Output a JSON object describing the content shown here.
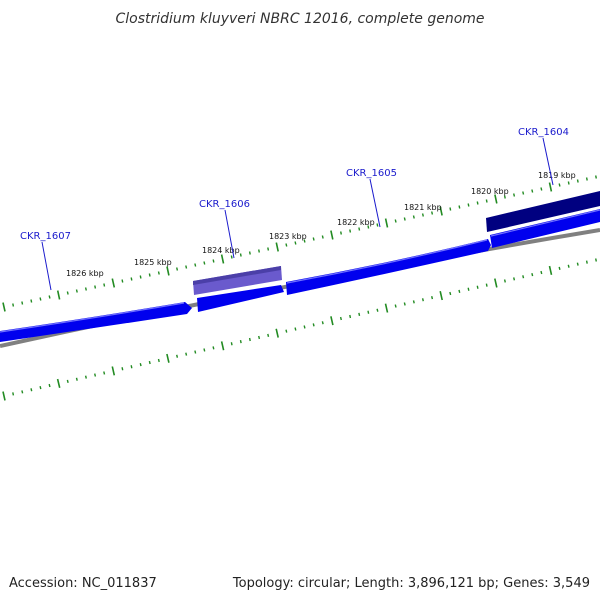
{
  "title": "Clostridium kluyveri NBRC 12016, complete genome",
  "footer": {
    "accession": "Accession: NC_011837",
    "summary": "Topology: circular; Length: 3,896,121 bp; Genes: 3,549"
  },
  "colors": {
    "forward_gene": "#0000ee",
    "highlight_gene": "#6a5acd",
    "dark_gene": "#000080",
    "backbone": "#808080",
    "tick": "#228b22",
    "label": "#1a1acc"
  },
  "ruler": {
    "unit": "kbp",
    "labels": [
      "1826 kbp",
      "1825 kbp",
      "1824 kbp",
      "1823 kbp",
      "1822 kbp",
      "1821 kbp",
      "1820 kbp",
      "1819 kbp"
    ]
  },
  "genes": [
    {
      "id": "CKR_1607",
      "label": "CKR_1607",
      "strand": "forward",
      "style": "forward_gene"
    },
    {
      "id": "CKR_1606",
      "label": "CKR_1606",
      "strand": "forward",
      "style": "highlight_gene"
    },
    {
      "id": "CKR_1605",
      "label": "CKR_1605",
      "strand": "forward",
      "style": "forward_gene"
    },
    {
      "id": "CKR_1604",
      "label": "CKR_1604",
      "strand": "forward",
      "style": "dark_gene"
    }
  ]
}
